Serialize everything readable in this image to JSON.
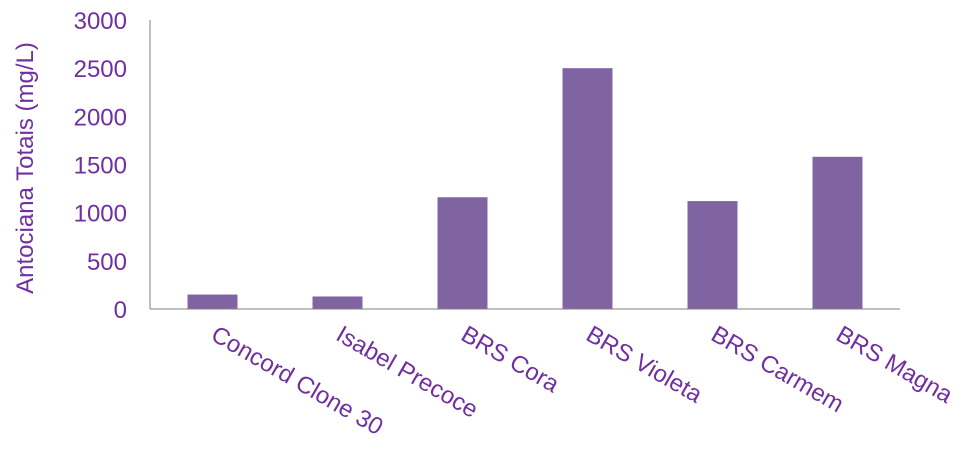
{
  "chart_data": {
    "type": "bar",
    "title": "",
    "xlabel": "",
    "ylabel": "Antociana Totais (mg/L)",
    "categories": [
      "Concord Clone 30",
      "Isabel Precoce",
      "BRS Cora",
      "BRS Violeta",
      "BRS Carmem",
      "BRS Magna"
    ],
    "values": [
      150,
      130,
      1160,
      2500,
      1120,
      1580
    ],
    "ylim": [
      0,
      3000
    ],
    "yticks": [
      "0",
      "500",
      "1000",
      "1500",
      "2000",
      "2500",
      "3000"
    ],
    "grid": false,
    "legend": "none",
    "bar_color": "#8064A2",
    "text_color": "#7030A0",
    "axis_color": "#7F7F7F"
  }
}
